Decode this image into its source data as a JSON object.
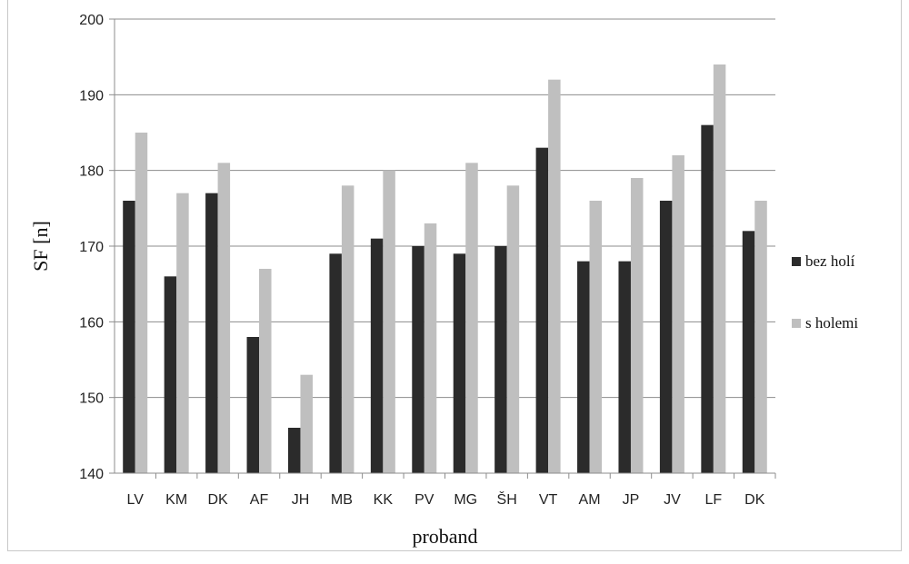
{
  "chart_data": {
    "type": "bar",
    "title": "",
    "xlabel": "proband",
    "ylabel": "SF [n]",
    "ylim": [
      140,
      200
    ],
    "yticks": [
      140,
      150,
      160,
      170,
      180,
      190,
      200
    ],
    "grid": true,
    "legend_position": "right",
    "categories": [
      "LV",
      "KM",
      "DK",
      "AF",
      "JH",
      "MB",
      "KK",
      "PV",
      "MG",
      "ŠH",
      "VT",
      "AM",
      "JP",
      "JV",
      "LF",
      "DK"
    ],
    "series": [
      {
        "name": "bez holí",
        "color": "#2b2b2b",
        "values": [
          176,
          166,
          177,
          158,
          146,
          169,
          171,
          170,
          169,
          170,
          183,
          168,
          168,
          176,
          186,
          172
        ]
      },
      {
        "name": "s holemi",
        "color": "#bfbfbf",
        "values": [
          185,
          177,
          181,
          167,
          153,
          178,
          180,
          173,
          181,
          178,
          192,
          176,
          179,
          182,
          194,
          176
        ]
      }
    ]
  }
}
